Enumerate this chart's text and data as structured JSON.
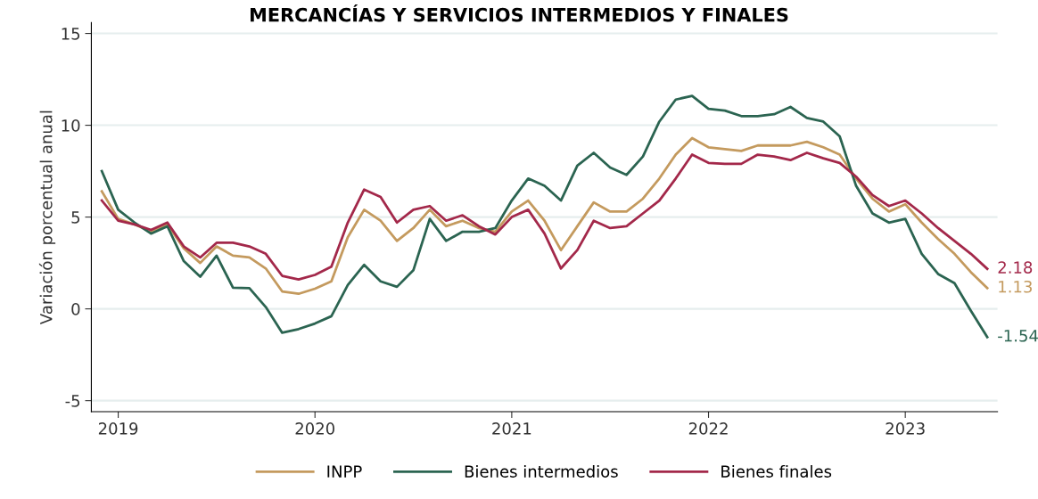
{
  "chart_data": {
    "type": "line",
    "title": "MERCANCÍAS Y SERVICIOS INTERMEDIOS Y FINALES",
    "ylabel": "Variación porcentual anual",
    "x": [
      "2018-12",
      "2019-01",
      "2019-02",
      "2019-03",
      "2019-04",
      "2019-05",
      "2019-06",
      "2019-07",
      "2019-08",
      "2019-09",
      "2019-10",
      "2019-11",
      "2019-12",
      "2020-01",
      "2020-02",
      "2020-03",
      "2020-04",
      "2020-05",
      "2020-06",
      "2020-07",
      "2020-08",
      "2020-09",
      "2020-10",
      "2020-11",
      "2020-12",
      "2021-01",
      "2021-02",
      "2021-03",
      "2021-04",
      "2021-05",
      "2021-06",
      "2021-07",
      "2021-08",
      "2021-09",
      "2021-10",
      "2021-11",
      "2021-12",
      "2022-01",
      "2022-02",
      "2022-03",
      "2022-04",
      "2022-05",
      "2022-06",
      "2022-07",
      "2022-08",
      "2022-09",
      "2022-10",
      "2022-11",
      "2022-12",
      "2023-01",
      "2023-02",
      "2023-03",
      "2023-04",
      "2023-05",
      "2023-06"
    ],
    "series": [
      {
        "name": "INPP",
        "color": "#c49a5e",
        "values": [
          6.4,
          4.9,
          4.6,
          4.2,
          4.6,
          3.3,
          2.5,
          3.4,
          2.9,
          2.8,
          2.2,
          0.95,
          0.82,
          1.1,
          1.5,
          3.9,
          5.4,
          4.8,
          3.7,
          4.4,
          5.4,
          4.5,
          4.8,
          4.4,
          4.2,
          5.3,
          5.9,
          4.8,
          3.2,
          4.5,
          5.8,
          5.3,
          5.3,
          6.0,
          7.1,
          8.4,
          9.3,
          8.8,
          8.7,
          8.6,
          8.9,
          8.9,
          8.9,
          9.1,
          8.8,
          8.4,
          7.1,
          6.0,
          5.3,
          5.7,
          4.7,
          3.8,
          3.0,
          2.0,
          1.13
        ]
      },
      {
        "name": "Bienes intermedios",
        "color": "#2b6451",
        "values": [
          7.5,
          5.4,
          4.7,
          4.1,
          4.5,
          2.6,
          1.75,
          2.9,
          1.15,
          1.13,
          0.1,
          -1.3,
          -1.1,
          -0.8,
          -0.4,
          1.3,
          2.4,
          1.5,
          1.2,
          2.1,
          4.9,
          3.7,
          4.2,
          4.2,
          4.4,
          5.9,
          7.1,
          6.7,
          5.9,
          7.8,
          8.5,
          7.7,
          7.3,
          8.3,
          10.2,
          11.4,
          11.6,
          10.9,
          10.8,
          10.5,
          10.5,
          10.6,
          11.0,
          10.4,
          10.2,
          9.4,
          6.7,
          5.2,
          4.7,
          4.9,
          3.0,
          1.9,
          1.4,
          -0.1,
          -1.54
        ]
      },
      {
        "name": "Bienes finales",
        "color": "#a3284a",
        "values": [
          5.9,
          4.8,
          4.6,
          4.3,
          4.7,
          3.4,
          2.8,
          3.6,
          3.6,
          3.4,
          3.0,
          1.8,
          1.6,
          1.85,
          2.3,
          4.7,
          6.5,
          6.1,
          4.7,
          5.4,
          5.6,
          4.8,
          5.1,
          4.5,
          4.05,
          5.0,
          5.4,
          4.1,
          2.2,
          3.2,
          4.8,
          4.4,
          4.5,
          5.2,
          5.9,
          7.1,
          8.4,
          7.95,
          7.9,
          7.9,
          8.4,
          8.3,
          8.1,
          8.5,
          8.2,
          7.95,
          7.2,
          6.2,
          5.6,
          5.9,
          5.2,
          4.4,
          3.7,
          3.0,
          2.18
        ]
      }
    ],
    "xlim": [
      "2018-11-12",
      "2023-06-20"
    ],
    "xticks": [
      {
        "value": "2019-01",
        "label": "2019"
      },
      {
        "value": "2020-01",
        "label": "2020"
      },
      {
        "value": "2021-01",
        "label": "2021"
      },
      {
        "value": "2022-01",
        "label": "2022"
      },
      {
        "value": "2023-01",
        "label": "2023"
      }
    ],
    "ylim": [
      -5.6,
      15.6
    ],
    "yticks": [
      -5,
      0,
      5,
      10,
      15
    ],
    "grid": "y",
    "legend": "bottom",
    "marker": "none",
    "line_style": "solid",
    "annotations": [
      {
        "text": "2.18",
        "x": "2023-06",
        "y": 2.18
      },
      {
        "text": "1.13",
        "x": "2023-06",
        "y": 1.13
      },
      {
        "text": "-1.54",
        "x": "2023-06",
        "y": -1.54
      }
    ]
  }
}
